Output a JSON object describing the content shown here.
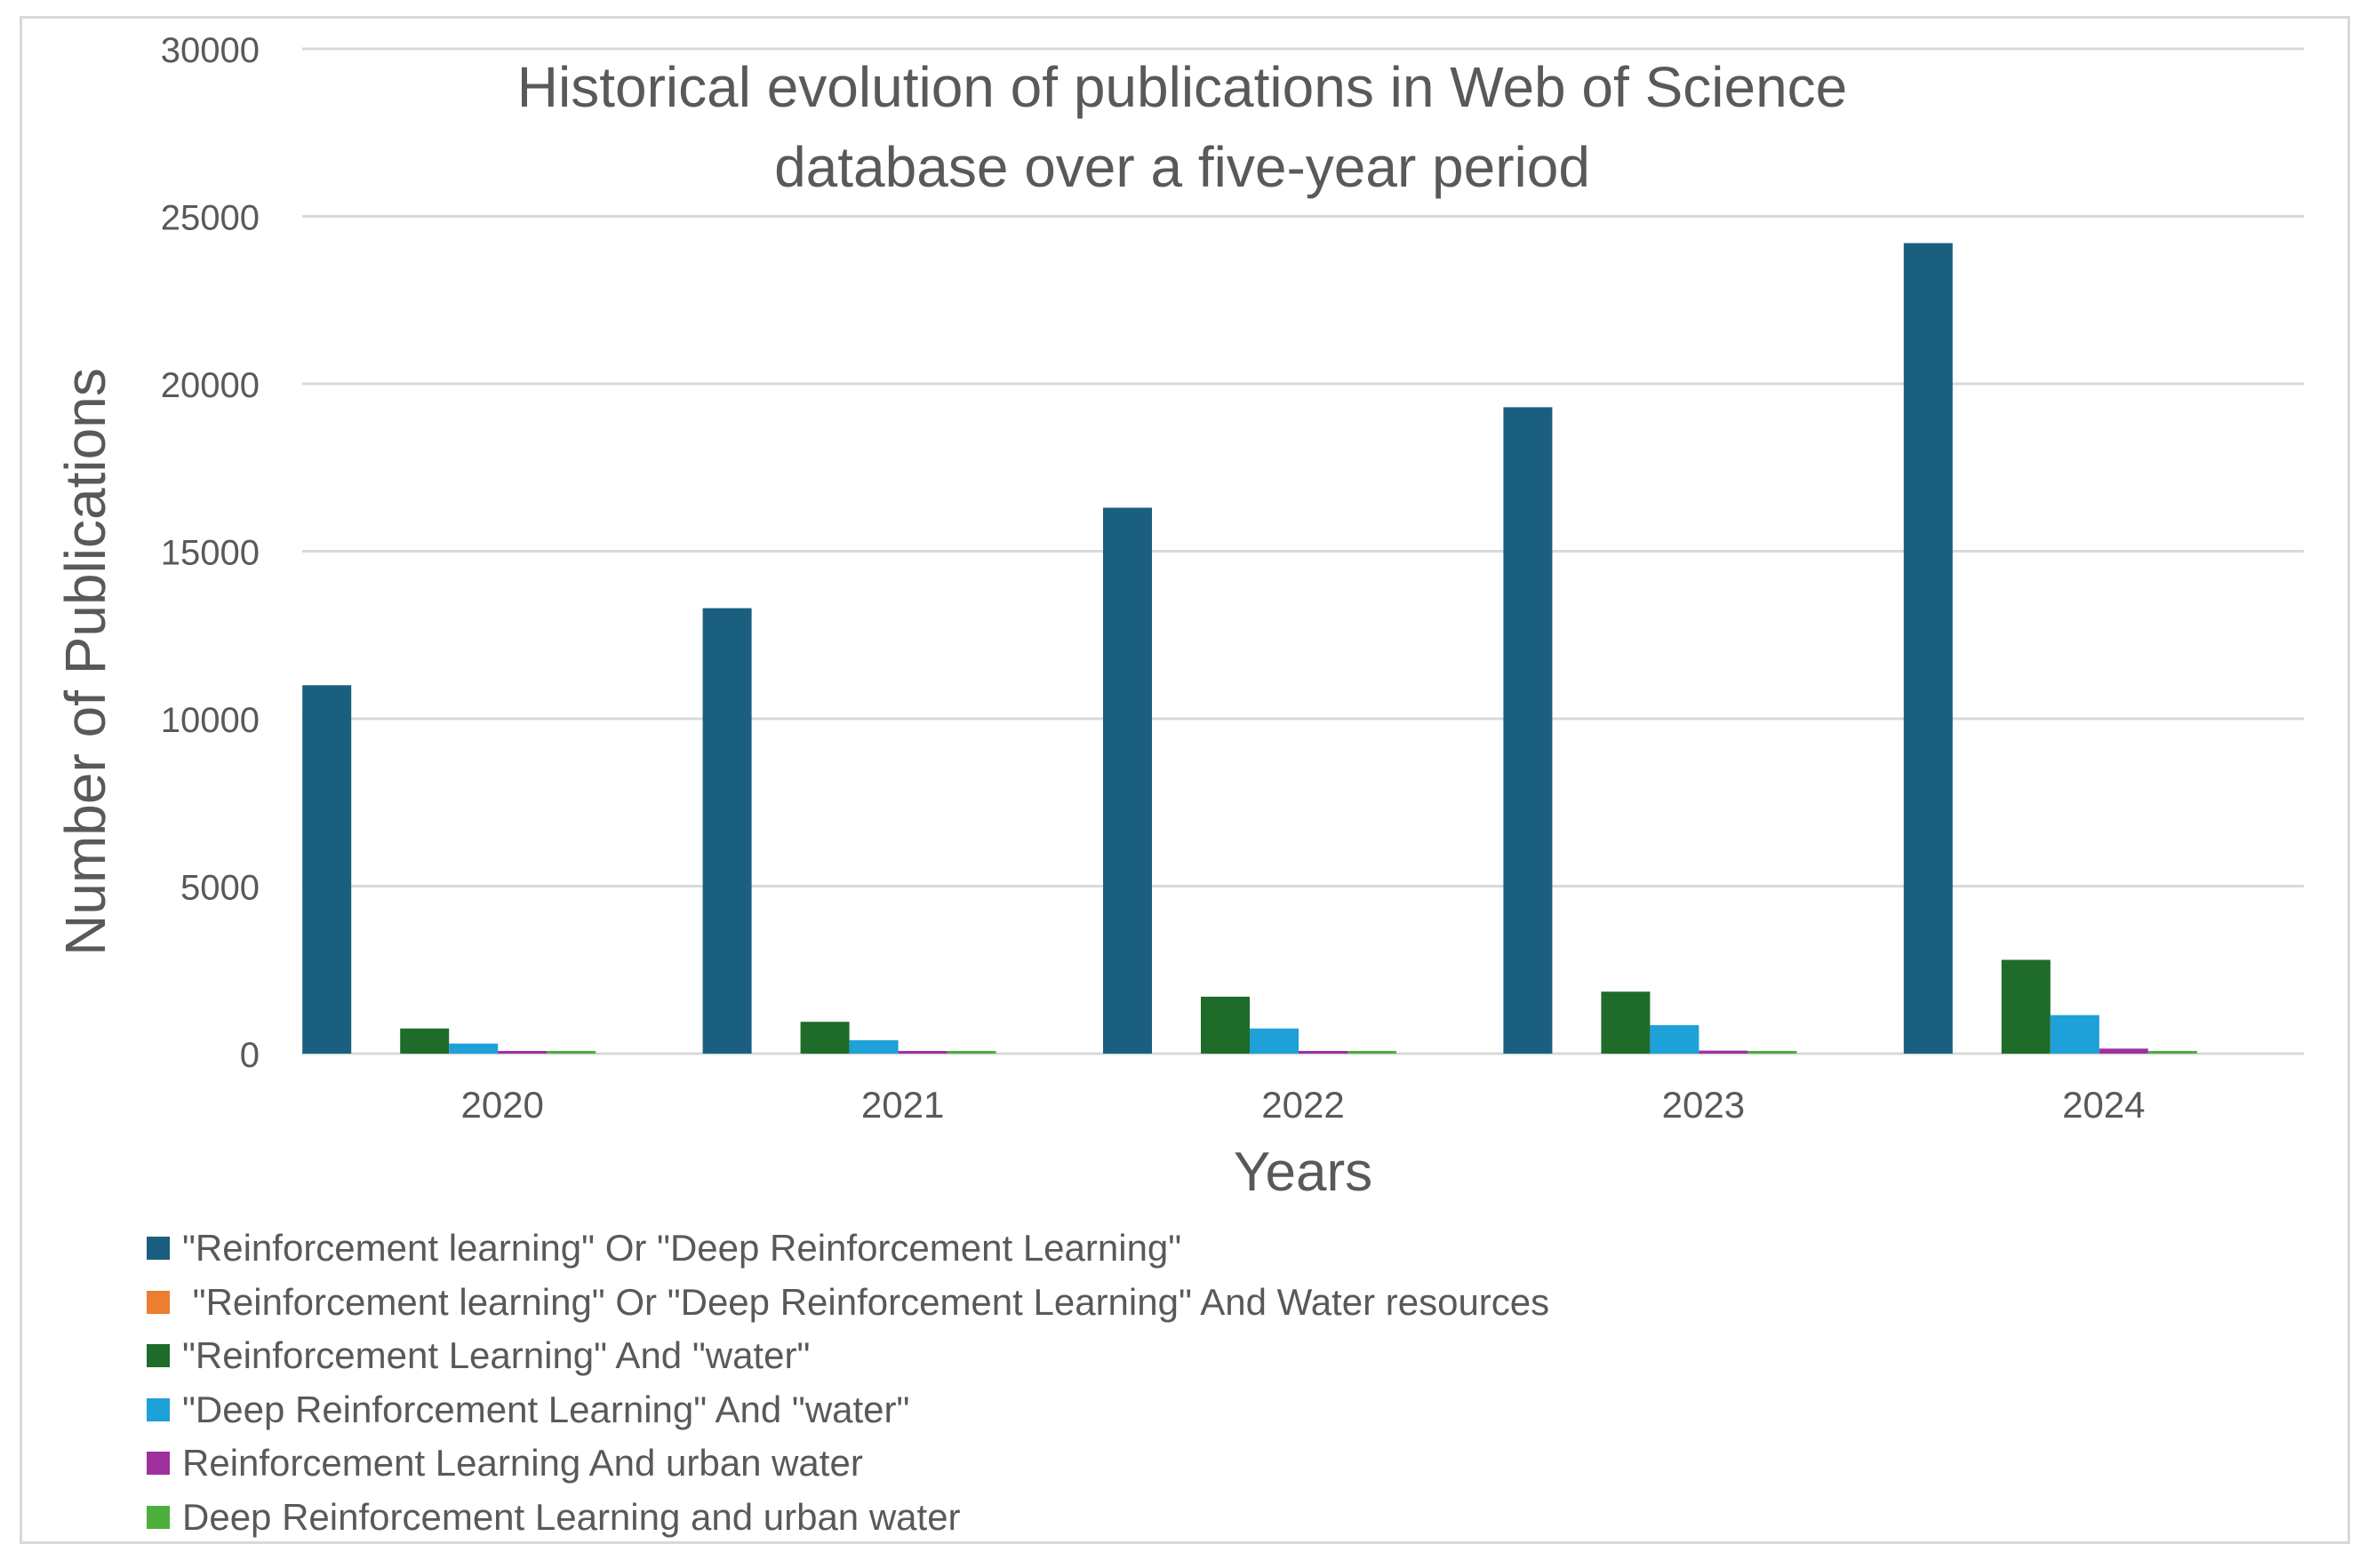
{
  "chart_data": {
    "type": "bar",
    "title": "Historical evolution of publications in Web of Science database over a five-year period",
    "title_lines": [
      "Historical evolution of publications in Web of Science",
      "database over a five-year period"
    ],
    "xlabel": "Years",
    "ylabel": "Number of Publications",
    "ylim": [
      0,
      30000
    ],
    "yticks": [
      "0",
      "5000",
      "10000",
      "15000",
      "20000",
      "25000",
      "30000"
    ],
    "grid": true,
    "legend_position": "bottom",
    "categories": [
      "2020",
      "2021",
      "2022",
      "2023",
      "2024"
    ],
    "series": [
      {
        "name": "\"Reinforcement learning\" Or \"Deep Reinforcement Learning\"",
        "color": "#1a5f80",
        "values": [
          11000,
          13300,
          16300,
          19300,
          24200
        ]
      },
      {
        "name": " \"Reinforcement learning\" Or \"Deep Reinforcement Learning\" And Water resources",
        "color": "#ed7d31",
        "values": [
          0,
          0,
          0,
          0,
          0
        ]
      },
      {
        "name": "\"Reinforcement Learning\" And \"water\"",
        "color": "#1e6b2a",
        "values": [
          750,
          950,
          1700,
          1850,
          2800
        ]
      },
      {
        "name": "\"Deep Reinforcement Learning\" And \"water\"",
        "color": "#1ea0d8",
        "values": [
          300,
          400,
          750,
          850,
          1150
        ]
      },
      {
        "name": "Reinforcement Learning And urban water",
        "color": "#a0309e",
        "values": [
          10,
          20,
          80,
          90,
          150
        ]
      },
      {
        "name": "Deep Reinforcement Learning and urban water",
        "color": "#4caf3c",
        "values": [
          5,
          10,
          30,
          40,
          70
        ]
      }
    ]
  }
}
